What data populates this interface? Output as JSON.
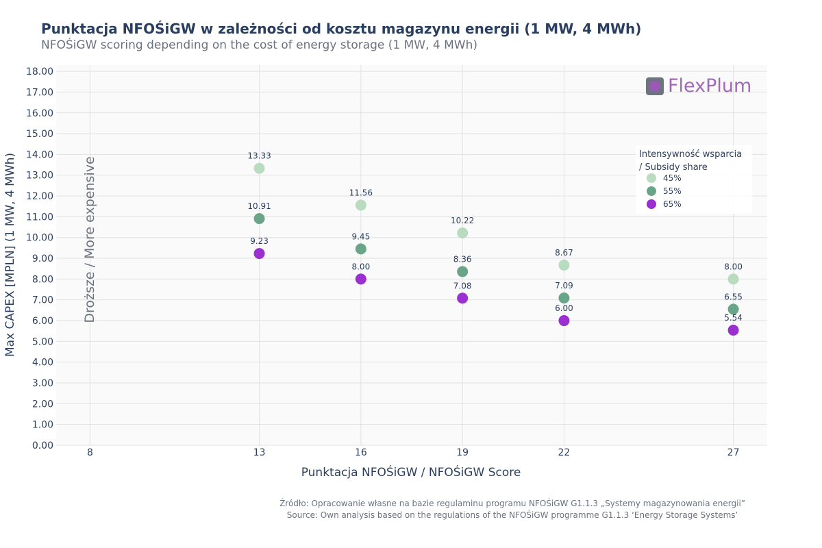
{
  "chart_data": {
    "type": "scatter",
    "title": "Punktacja NFOŚiGW w zależności od kosztu magazynu energii (1 MW, 4 MWh)",
    "subtitle": "NFOŚiGW scoring depending on the cost of energy storage (1 MW, 4 MWh)",
    "xlabel": "Punktacja NFOŚiGW / NFOŚiGW Score",
    "ylabel": "Max CAPEX [MPLN] (1 MW, 4 MWh)",
    "annotation": "Droższe / More expensive",
    "x_ticks": [
      8,
      13,
      16,
      19,
      22,
      27
    ],
    "y_ticks": [
      "0.00",
      "1.00",
      "2.00",
      "3.00",
      "4.00",
      "5.00",
      "6.00",
      "7.00",
      "8.00",
      "9.00",
      "10.00",
      "11.00",
      "12.00",
      "13.00",
      "14.00",
      "15.00",
      "16.00",
      "17.00",
      "18.00"
    ],
    "xlim": [
      7,
      28
    ],
    "ylim": [
      0,
      18.3
    ],
    "x": [
      13,
      16,
      19,
      22,
      27
    ],
    "series": [
      {
        "name": "45%",
        "color": "#b9dcc1",
        "values": [
          13.33,
          11.56,
          10.22,
          8.67,
          8.0
        ],
        "labels": [
          "13.33",
          "11.56",
          "10.22",
          "8.67",
          "8.00"
        ]
      },
      {
        "name": "55%",
        "color": "#6aa58a",
        "values": [
          10.91,
          9.45,
          8.36,
          7.09,
          6.55
        ],
        "labels": [
          "10.91",
          "9.45",
          "8.36",
          "7.09",
          "6.55"
        ]
      },
      {
        "name": "65%",
        "color": "#9b30d0",
        "values": [
          9.23,
          8.0,
          7.08,
          6.0,
          5.54
        ],
        "labels": [
          "9.23",
          "8.00",
          "7.08",
          "6.00",
          "5.54"
        ]
      }
    ],
    "legend": {
      "title_line1": "Intensywność wsparcia",
      "title_line2": "/ Subsidy share",
      "position": "top-right"
    }
  },
  "logo": {
    "text": "FlexPlum"
  },
  "source": {
    "line1": "Źródło: Opracowanie własne na bazie regulaminu programu NFOŚiGW G1.1.3 „Systemy magazynowania energii”",
    "line2": "Source: Own analysis based on the regulations of the NFOŚiGW programme G1.1.3 ‘Energy Storage Systems’"
  }
}
